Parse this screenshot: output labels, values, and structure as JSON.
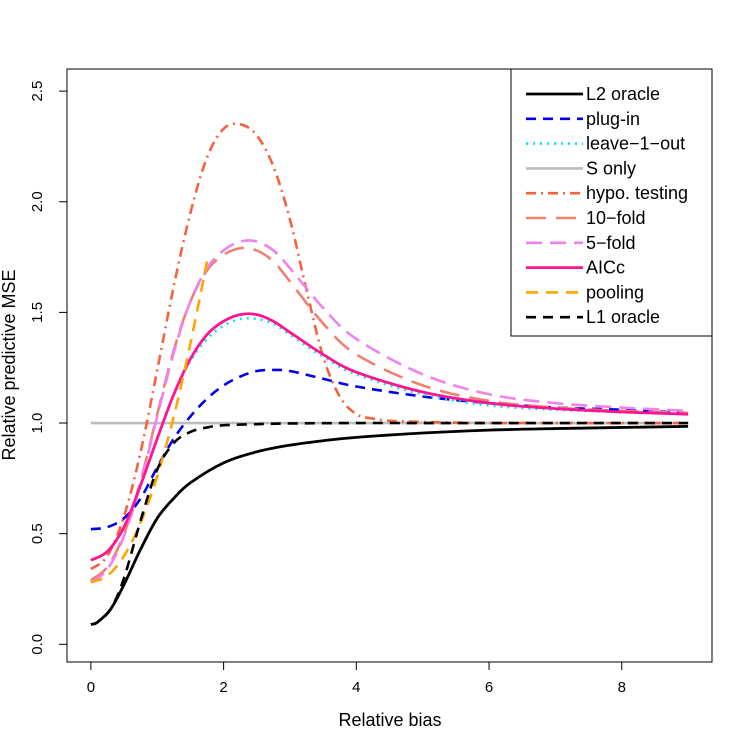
{
  "chart_data": {
    "type": "line",
    "title": "",
    "xlabel": "Relative bias",
    "ylabel": "Relative predictive MSE",
    "xlim": [
      -0.36,
      9.36
    ],
    "ylim": [
      -0.08,
      2.6
    ],
    "xticks": [
      0,
      2,
      4,
      6,
      8
    ],
    "yticks": [
      0.0,
      0.5,
      1.0,
      1.5,
      2.0,
      2.5
    ],
    "xtick_labels": [
      "0",
      "2",
      "4",
      "6",
      "8"
    ],
    "ytick_labels": [
      "0.0",
      "0.5",
      "1.0",
      "1.5",
      "2.0",
      "2.5"
    ],
    "legend_position": "top-right",
    "series": [
      {
        "name": "L2 oracle",
        "color": "#000000",
        "dash": "solid",
        "width": 2.8,
        "x": [
          0,
          0.1,
          0.3,
          0.5,
          0.75,
          1,
          1.25,
          1.5,
          2,
          2.5,
          3,
          3.5,
          4,
          5,
          6,
          7,
          8,
          9
        ],
        "y": [
          0.09,
          0.1,
          0.16,
          0.27,
          0.43,
          0.57,
          0.66,
          0.73,
          0.82,
          0.87,
          0.9,
          0.92,
          0.935,
          0.955,
          0.968,
          0.975,
          0.98,
          0.985
        ]
      },
      {
        "name": "plug-in",
        "color": "#0000ee",
        "dash": "10,7",
        "width": 2.6,
        "x": [
          0,
          0.25,
          0.5,
          0.75,
          1,
          1.25,
          1.5,
          1.75,
          2,
          2.25,
          2.5,
          2.75,
          3,
          3.5,
          4,
          5,
          6,
          7,
          8,
          9
        ],
        "y": [
          0.52,
          0.53,
          0.57,
          0.66,
          0.8,
          0.93,
          1.03,
          1.11,
          1.17,
          1.21,
          1.235,
          1.24,
          1.235,
          1.2,
          1.165,
          1.12,
          1.09,
          1.07,
          1.06,
          1.045
        ]
      },
      {
        "name": "leave−1−out",
        "color": "#00e5ee",
        "dash": "2,5",
        "width": 2.6,
        "x": [
          0,
          0.25,
          0.5,
          0.75,
          1,
          1.25,
          1.5,
          1.75,
          2,
          2.25,
          2.5,
          2.75,
          3,
          3.5,
          4,
          5,
          6,
          7,
          8,
          9
        ],
        "y": [
          0.38,
          0.42,
          0.53,
          0.72,
          0.93,
          1.13,
          1.28,
          1.38,
          1.44,
          1.47,
          1.47,
          1.45,
          1.4,
          1.3,
          1.22,
          1.13,
          1.08,
          1.06,
          1.05,
          1.04
        ]
      },
      {
        "name": "S only",
        "color": "#bebebe",
        "dash": "solid",
        "width": 2.6,
        "x": [
          0,
          9
        ],
        "y": [
          1.0,
          1.0
        ]
      },
      {
        "name": "hypo. testing",
        "color": "#f4633f",
        "dash": "10,5,2,5",
        "width": 2.6,
        "x": [
          0,
          0.25,
          0.5,
          0.75,
          1,
          1.25,
          1.5,
          1.75,
          2,
          2.25,
          2.5,
          2.75,
          3,
          3.25,
          3.5,
          3.75,
          4,
          4.25,
          4.5,
          5,
          6,
          7,
          8,
          9
        ],
        "y": [
          0.34,
          0.4,
          0.58,
          0.87,
          1.24,
          1.62,
          1.95,
          2.2,
          2.33,
          2.35,
          2.3,
          2.16,
          1.92,
          1.6,
          1.3,
          1.12,
          1.04,
          1.02,
          1.01,
          1.005,
          1.0,
          1.0,
          1.0,
          1.0
        ]
      },
      {
        "name": "10−fold",
        "color": "#f08070",
        "dash": "20,10",
        "width": 2.6,
        "x": [
          0,
          0.25,
          0.5,
          0.75,
          1,
          1.25,
          1.5,
          1.75,
          2,
          2.25,
          2.5,
          2.75,
          3,
          3.5,
          4,
          5,
          6,
          7,
          8,
          9
        ],
        "y": [
          0.29,
          0.35,
          0.5,
          0.74,
          1.04,
          1.33,
          1.55,
          1.69,
          1.76,
          1.79,
          1.78,
          1.73,
          1.64,
          1.45,
          1.31,
          1.17,
          1.1,
          1.07,
          1.055,
          1.045
        ]
      },
      {
        "name": "5−fold",
        "color": "#ee82ee",
        "dash": "16,8",
        "width": 2.6,
        "x": [
          0,
          0.25,
          0.5,
          0.75,
          1,
          1.25,
          1.5,
          1.75,
          2,
          2.25,
          2.5,
          2.75,
          3,
          3.5,
          4,
          5,
          6,
          7,
          8,
          9
        ],
        "y": [
          0.28,
          0.34,
          0.49,
          0.73,
          1.03,
          1.32,
          1.55,
          1.7,
          1.78,
          1.82,
          1.82,
          1.78,
          1.7,
          1.52,
          1.38,
          1.22,
          1.13,
          1.09,
          1.07,
          1.055
        ]
      },
      {
        "name": "AICc",
        "color": "#ff1493",
        "dash": "solid",
        "width": 2.8,
        "x": [
          0,
          0.25,
          0.5,
          0.75,
          1,
          1.25,
          1.5,
          1.75,
          2,
          2.25,
          2.5,
          2.75,
          3,
          3.5,
          4,
          5,
          6,
          7,
          8,
          9
        ],
        "y": [
          0.38,
          0.42,
          0.53,
          0.72,
          0.93,
          1.13,
          1.29,
          1.4,
          1.46,
          1.49,
          1.49,
          1.46,
          1.41,
          1.31,
          1.23,
          1.14,
          1.09,
          1.065,
          1.05,
          1.04
        ]
      },
      {
        "name": "pooling",
        "color": "#ffa500",
        "dash": "12,8",
        "width": 2.6,
        "x": [
          0,
          0.25,
          0.5,
          0.75,
          1,
          1.25,
          1.5,
          1.75
        ],
        "y": [
          0.28,
          0.31,
          0.4,
          0.55,
          0.76,
          1.03,
          1.36,
          1.73
        ]
      },
      {
        "name": "L1 oracle",
        "color": "#000000",
        "dash": "10,7",
        "width": 2.6,
        "x": [
          0,
          0.1,
          0.3,
          0.5,
          0.75,
          1,
          1.25,
          1.5,
          1.75,
          2,
          2.5,
          3,
          4,
          5,
          6,
          7,
          8,
          9
        ],
        "y": [
          0.09,
          0.1,
          0.16,
          0.3,
          0.56,
          0.79,
          0.91,
          0.96,
          0.98,
          0.99,
          0.995,
          0.998,
          1.0,
          1.0,
          1.0,
          1.0,
          1.0,
          1.0
        ]
      }
    ]
  }
}
